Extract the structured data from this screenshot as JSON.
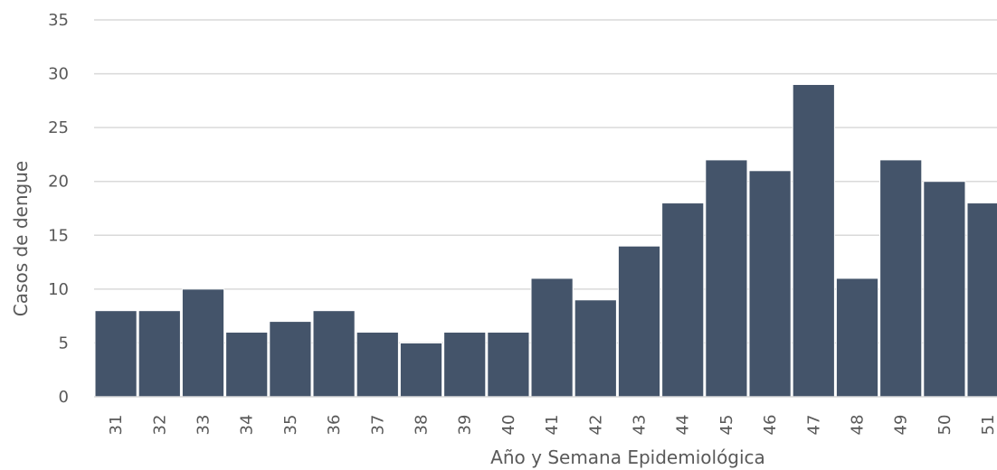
{
  "chart_data": {
    "type": "bar",
    "xlabel": "Año y Semana Epidemiológica",
    "ylabel": "Casos de dengue",
    "categories": [
      "31",
      "32",
      "33",
      "34",
      "35",
      "36",
      "37",
      "38",
      "39",
      "40",
      "41",
      "42",
      "43",
      "44",
      "45",
      "46",
      "47",
      "48",
      "49",
      "50",
      "51"
    ],
    "values": [
      8,
      8,
      10,
      6,
      7,
      8,
      6,
      5,
      6,
      6,
      11,
      9,
      14,
      18,
      22,
      21,
      29,
      11,
      22,
      20,
      18
    ],
    "ylim": [
      0,
      35
    ],
    "yticks": [
      0,
      5,
      10,
      15,
      20,
      25,
      30,
      35
    ],
    "grid": true,
    "bar_color": "#44546a",
    "grid_color": "#d9d9d9"
  }
}
